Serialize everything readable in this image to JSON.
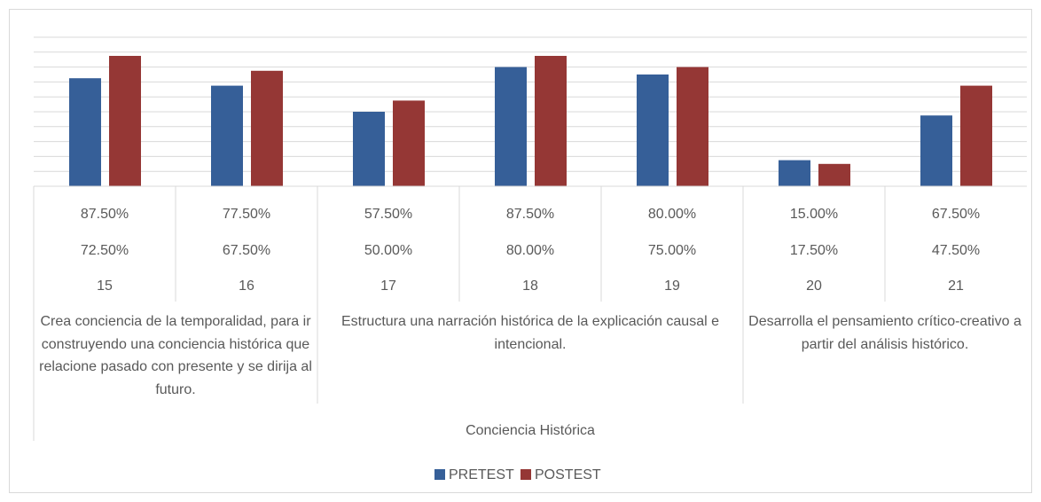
{
  "chart_data": {
    "type": "bar",
    "categories": [
      "15",
      "16",
      "17",
      "18",
      "19",
      "20",
      "21"
    ],
    "groups": [
      {
        "label": "Crea conciencia de la temporalidad, para ir construyendo una conciencia histórica que relacione pasado con presente y se dirija al futuro.",
        "span": 2
      },
      {
        "label": "Estructura una narración histórica de la explicación causal e intencional.",
        "span": 3
      },
      {
        "label": "Desarrolla el pensamiento crítico-creativo a partir del análisis histórico.",
        "span": 2
      }
    ],
    "group_title": "Conciencia Histórica",
    "series": [
      {
        "name": "PRETEST",
        "color": "#365f98",
        "values": [
          72.5,
          67.5,
          50,
          80,
          75,
          17.5,
          47.5
        ],
        "value_labels": [
          "72.50%",
          "67.50%",
          "50.00%",
          "80.00%",
          "75.00%",
          "17.50%",
          "47.50%"
        ]
      },
      {
        "name": "POSTEST",
        "color": "#953735",
        "values": [
          87.5,
          77.5,
          57.5,
          87.5,
          80,
          15,
          67.5
        ],
        "value_labels": [
          "87.50%",
          "77.50%",
          "57.50%",
          "87.50%",
          "80.00%",
          "15.00%",
          "67.50%"
        ]
      }
    ],
    "ylim": [
      0,
      100
    ],
    "yticks": [
      0,
      10,
      20,
      30,
      40,
      50,
      60,
      70,
      80,
      90,
      100
    ],
    "grid": true,
    "legend": "bottom"
  }
}
